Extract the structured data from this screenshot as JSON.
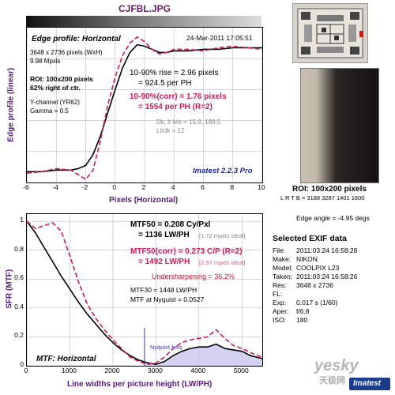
{
  "header": {
    "filename": "CJFBL.JPG"
  },
  "edge_chart": {
    "title": "Edge profile: Horizontal",
    "date": "24-Mar-2011 17:05:51",
    "info": [
      "3648 x 2736 pixels (WxH)",
      "9.98 Mpxls"
    ],
    "roi": [
      "ROI: 100x200 pixels",
      "62% right of ctr."
    ],
    "channel": [
      "Y-channel (YR62)",
      "Gamma = 0.5"
    ],
    "rise": [
      "10-90% rise = 2.96 pixels",
      "= 924.5 per PH"
    ],
    "rise_corr": [
      "10-90%(corr) = 1.76 pixels",
      "= 1554 per PH  (R=2)"
    ],
    "levels": [
      "Dk, lt lvls = 15.8, 189.5",
      "Lt/dk = 12"
    ],
    "brand": "Imatest 2.2.3 Pro",
    "ylabel": "Edge profile (linear)",
    "xlabel": "Pixels (Horizontal)"
  },
  "mtf_chart": {
    "title": "MTF: Horizontal",
    "ylabel": "SFR (MTF)",
    "xlabel": "Line widths per picture height (LW/PH)",
    "mtf50": [
      "MTF50 = 0.208 Cy/Pxl",
      "= 1136 LW/PH"
    ],
    "mtf50_ideal": "[1.72 mpxls ideal]",
    "mtf50_corr": [
      "MTF50(corr) = 0.273 C/P  (R=2)",
      "= 1492 LW/PH"
    ],
    "mtf50_corr_ideal": "[2.97 mpxls ideal]",
    "undersharpening": "Undersharpening = 36.2%",
    "mtf30": "MTF30 = 1448 LW/PH",
    "nyquist_mtf": "MTF at Nyquist = 0.0527",
    "nyquist_label": "Nyquist freq."
  },
  "roi_panel": {
    "label": "ROI: 100x200 pixels",
    "lrtb": "L R T B = 3188 3287  1401 1600",
    "edge_angle": "Edge angle = -4.95 degs"
  },
  "exif": {
    "title": "Selected EXIF data",
    "rows": [
      {
        "k": "File:",
        "v": "2011:03:24 16:58:28"
      },
      {
        "k": "Make:",
        "v": "NIKON"
      },
      {
        "k": "Model:",
        "v": "COOLPIX L23"
      },
      {
        "k": "Taken:",
        "v": "2011:03:24 16:58:26"
      },
      {
        "k": "Res:",
        "v": "3648 x 2736"
      },
      {
        "k": "FL:",
        "v": ""
      },
      {
        "k": "Exp:",
        "v": "0.017 s  (1/60)"
      },
      {
        "k": "Aper:",
        "v": "f/6.8"
      },
      {
        "k": "ISO:",
        "v": "180"
      }
    ]
  },
  "watermark": {
    "site": "yesky",
    "cn": "天极网",
    "logo": "Imatest"
  },
  "chart_data": [
    {
      "type": "line",
      "title": "Edge profile: Horizontal",
      "xlabel": "Pixels (Horizontal)",
      "ylabel": "Edge profile (linear)",
      "xlim": [
        -6,
        10
      ],
      "xticks": [
        -6,
        -4,
        -2,
        0,
        2,
        4,
        6,
        8,
        10
      ],
      "ylim": [
        0,
        1
      ],
      "grid": true,
      "series": [
        {
          "color": "#000000",
          "x": [
            -6,
            -5,
            -4,
            -3,
            -2.5,
            -2,
            -1.5,
            -1,
            -0.5,
            0,
            0.5,
            1,
            1.5,
            2,
            2.5,
            3,
            3.5,
            4,
            5,
            6,
            7,
            8,
            9,
            10
          ],
          "y": [
            0.07,
            0.07,
            0.08,
            0.08,
            0.09,
            0.11,
            0.18,
            0.3,
            0.45,
            0.6,
            0.74,
            0.84,
            0.89,
            0.88,
            0.86,
            0.84,
            0.84,
            0.85,
            0.85,
            0.86,
            0.86,
            0.87,
            0.87,
            0.87
          ]
        },
        {
          "color": "#cc1b5c",
          "dashed": true,
          "x": [
            -6,
            -5,
            -4,
            -3,
            -2.5,
            -2,
            -1.5,
            -1,
            -0.5,
            0,
            0.5,
            1,
            1.5,
            2,
            2.5,
            3,
            3.5,
            4,
            5,
            6,
            7,
            8,
            9,
            10
          ],
          "y": [
            0.06,
            0.07,
            0.09,
            0.08,
            0.05,
            0.02,
            0.08,
            0.27,
            0.5,
            0.68,
            0.82,
            0.9,
            0.94,
            0.91,
            0.86,
            0.83,
            0.84,
            0.86,
            0.86,
            0.85,
            0.87,
            0.88,
            0.87,
            0.86
          ]
        }
      ]
    },
    {
      "type": "line",
      "title": "MTF: Horizontal",
      "xlabel": "Line widths per picture height (LW/PH)",
      "ylabel": "SFR (MTF)",
      "xlim": [
        0,
        5472
      ],
      "xticks": [
        0,
        1000,
        2000,
        3000,
        4000,
        5000
      ],
      "ylim": [
        0,
        1.05
      ],
      "yticks": [
        0,
        0.2,
        0.4,
        0.6,
        0.8,
        1
      ],
      "nyquist_x": 2736,
      "grid": true,
      "series": [
        {
          "color": "#000000",
          "x": [
            0,
            200,
            400,
            600,
            800,
            1000,
            1200,
            1400,
            1600,
            1800,
            2000,
            2200,
            2400,
            2600,
            2800,
            3000,
            3200,
            3400,
            3600,
            3800,
            4000,
            4200,
            4400,
            4600,
            4800,
            5000,
            5200,
            5472
          ],
          "y": [
            1,
            0.92,
            0.82,
            0.72,
            0.62,
            0.53,
            0.44,
            0.36,
            0.29,
            0.22,
            0.16,
            0.11,
            0.07,
            0.04,
            0.02,
            0.01,
            0.03,
            0.07,
            0.1,
            0.12,
            0.13,
            0.13,
            0.15,
            0.12,
            0.11,
            0.1,
            0.07,
            0.05
          ]
        },
        {
          "color": "#cc1b5c",
          "dashed": true,
          "x": [
            0,
            200,
            400,
            600,
            800,
            1000,
            1200,
            1400,
            1600,
            1800,
            2000,
            2200,
            2400,
            2600,
            2800,
            3000,
            3200,
            3400,
            3600,
            3800,
            4000,
            4200,
            4400,
            4600,
            4800,
            5000,
            5200,
            5472
          ],
          "y": [
            1,
            0.95,
            0.97,
            0.99,
            0.93,
            0.76,
            0.58,
            0.43,
            0.33,
            0.25,
            0.18,
            0.12,
            0.06,
            0.03,
            0.01,
            0.02,
            0.06,
            0.12,
            0.16,
            0.18,
            0.19,
            0.2,
            0.25,
            0.19,
            0.14,
            0.12,
            0.09,
            0.06
          ]
        }
      ]
    }
  ]
}
